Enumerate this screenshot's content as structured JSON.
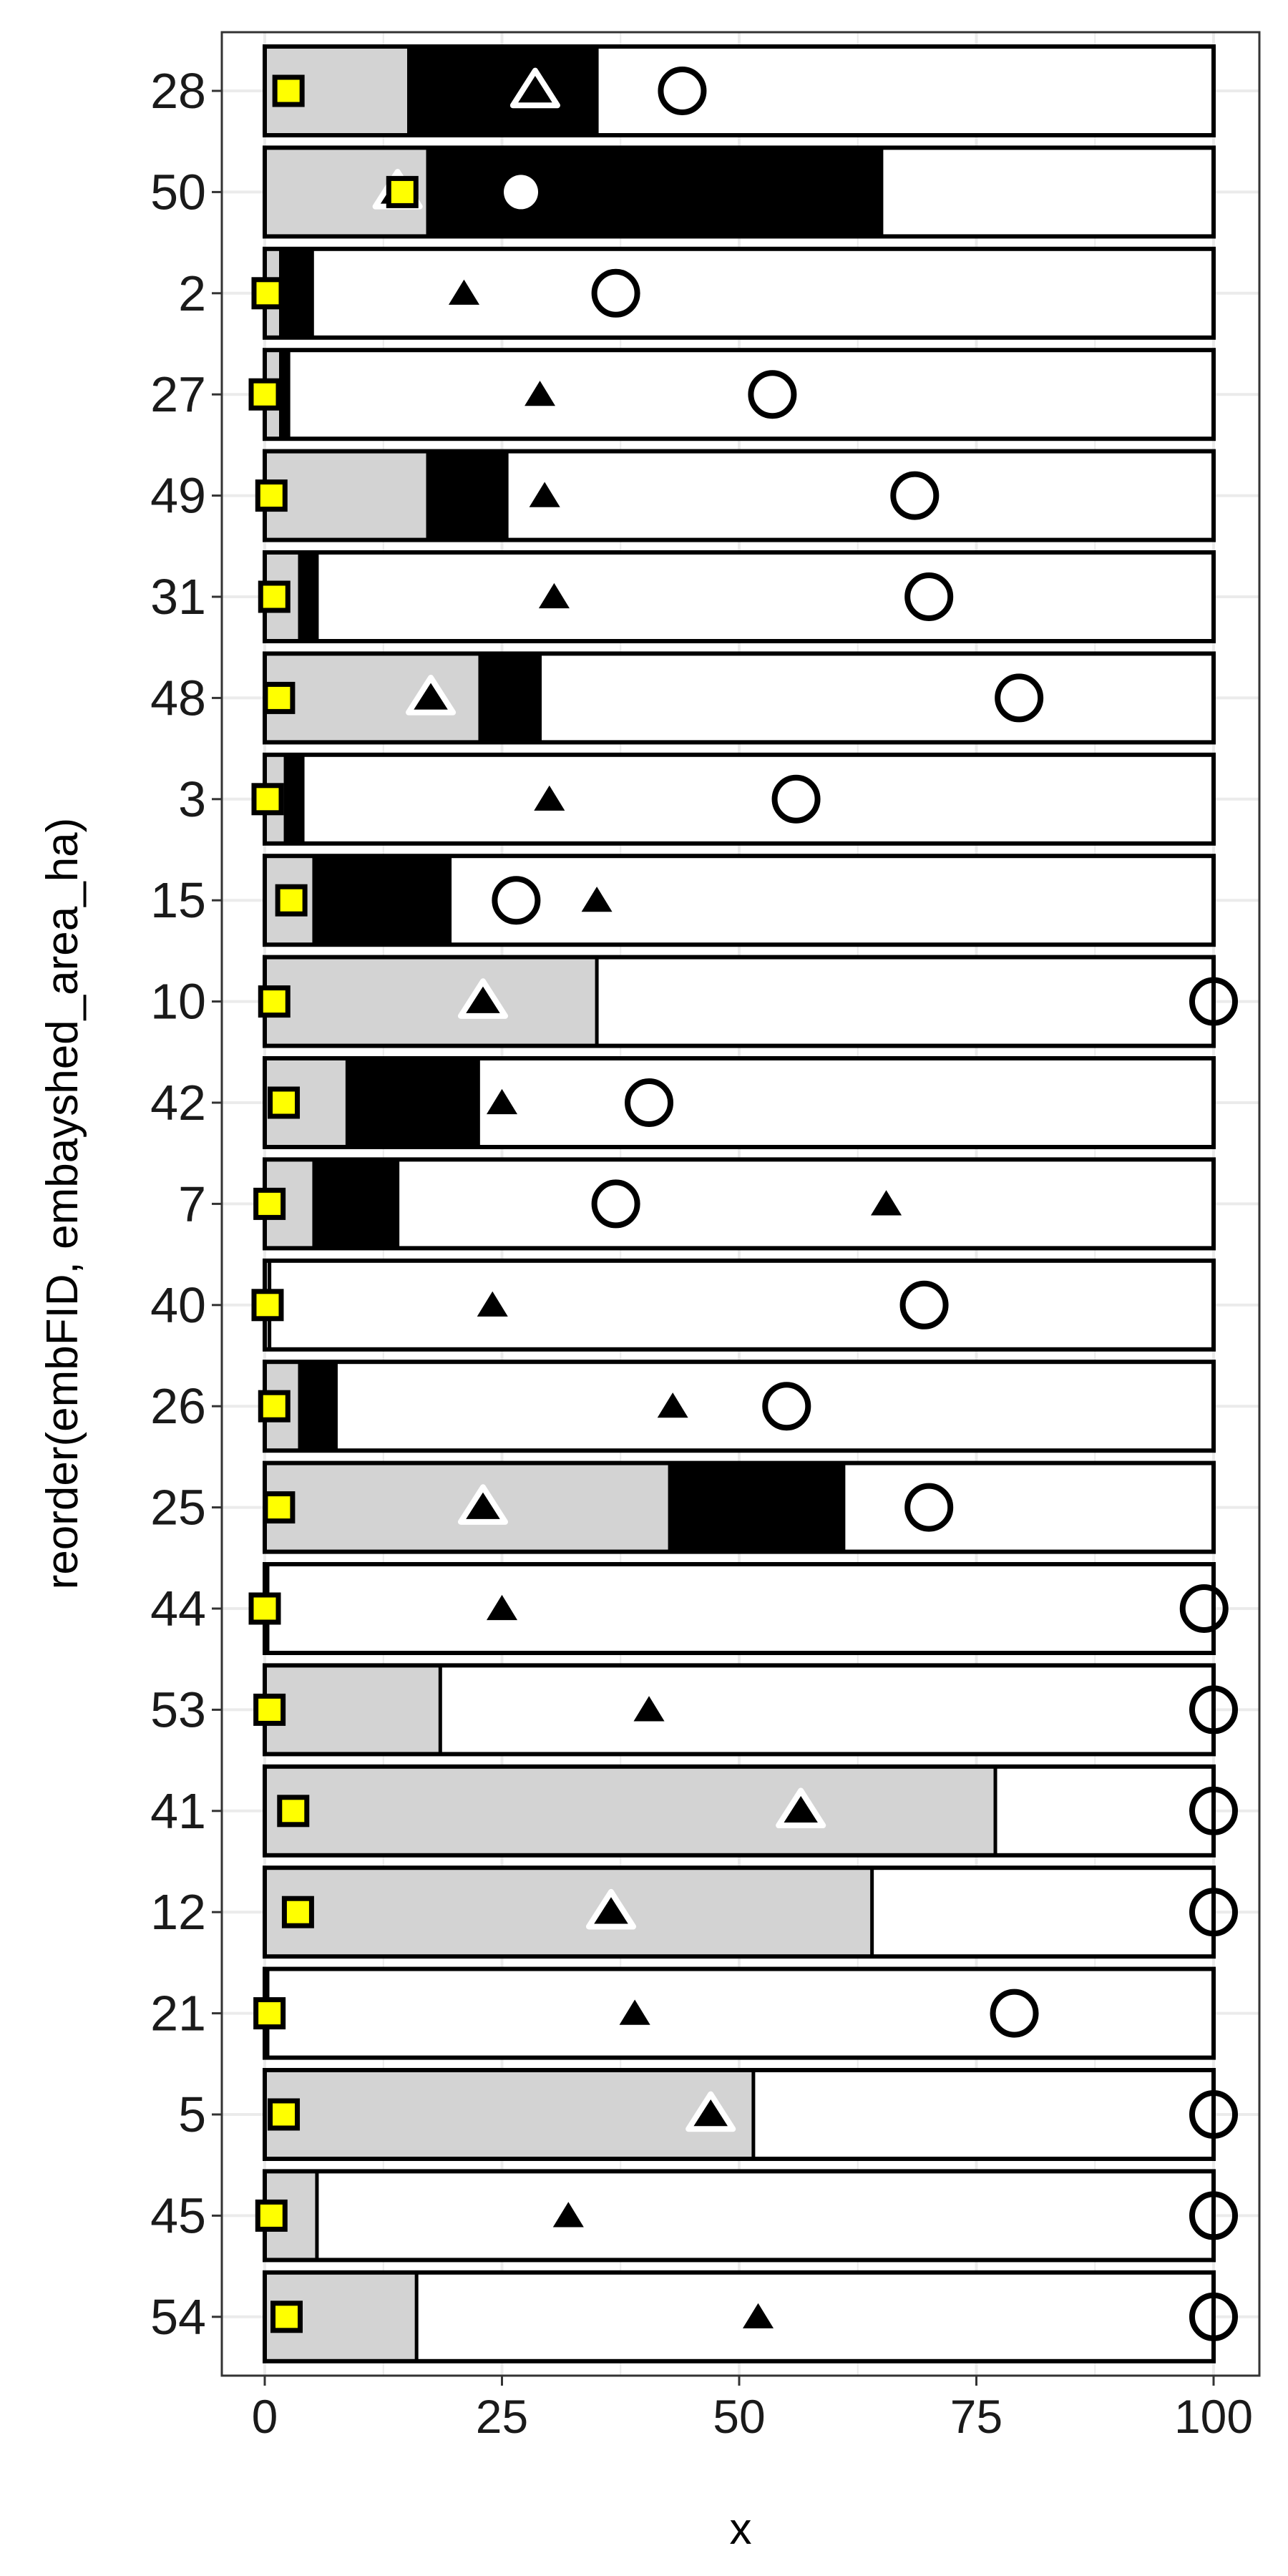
{
  "chart_data": {
    "type": "bar",
    "xlabel": "x",
    "ylabel": "reorder(embFID, embayshed_area_ha)",
    "xlim": [
      -5,
      105
    ],
    "x_ticks": [
      0,
      25,
      50,
      75,
      100
    ],
    "x_tick_labels": [
      "0",
      "25",
      "50",
      "75",
      "100"
    ],
    "grid": true,
    "legend": "none",
    "colors": {
      "grey_segment": "#d3d3d3",
      "black_segment": "#000000",
      "white_segment": "#ffffff",
      "square_marker": "#ffff00",
      "gridline": "#ebebeb"
    },
    "categories": [
      "28",
      "50",
      "2",
      "27",
      "49",
      "31",
      "48",
      "3",
      "15",
      "10",
      "42",
      "7",
      "40",
      "26",
      "25",
      "44",
      "53",
      "41",
      "12",
      "21",
      "5",
      "45",
      "54"
    ],
    "bars": [
      {
        "grey": 15,
        "black": 35,
        "square": 2.5,
        "triangle": 28.5,
        "triangle_style": "open",
        "circle": 44,
        "circle_style": "open"
      },
      {
        "grey": 17,
        "black": 65,
        "square": 14.5,
        "triangle": 14,
        "triangle_style": "open",
        "circle": 27,
        "circle_style": "white-filled"
      },
      {
        "grey": 1.5,
        "black": 5,
        "square": 0.3,
        "triangle": 21,
        "triangle_style": "filled",
        "circle": 37,
        "circle_style": "open"
      },
      {
        "grey": 1.5,
        "black": 2.5,
        "square": 0,
        "triangle": 29,
        "triangle_style": "filled",
        "circle": 53.5,
        "circle_style": "open"
      },
      {
        "grey": 17,
        "black": 25.5,
        "square": 0.7,
        "triangle": 29.5,
        "triangle_style": "filled",
        "circle": 68.5,
        "circle_style": "open"
      },
      {
        "grey": 3.5,
        "black": 5.5,
        "square": 1,
        "triangle": 30.5,
        "triangle_style": "filled",
        "circle": 70,
        "circle_style": "open"
      },
      {
        "grey": 22.5,
        "black": 29,
        "square": 1.5,
        "triangle": 17.5,
        "triangle_style": "open",
        "circle": 79.5,
        "circle_style": "open"
      },
      {
        "grey": 2,
        "black": 4,
        "square": 0.3,
        "triangle": 30,
        "triangle_style": "filled",
        "circle": 56,
        "circle_style": "open"
      },
      {
        "grey": 5,
        "black": 19.5,
        "square": 2.8,
        "triangle": 35,
        "triangle_style": "filled",
        "circle": 26.5,
        "circle_style": "open"
      },
      {
        "grey": 35,
        "black": 35,
        "square": 1,
        "triangle": 23,
        "triangle_style": "open",
        "circle": 100,
        "circle_style": "open"
      },
      {
        "grey": 8.5,
        "black": 22.5,
        "square": 2,
        "triangle": 25,
        "triangle_style": "filled",
        "circle": 40.5,
        "circle_style": "open"
      },
      {
        "grey": 5,
        "black": 14,
        "square": 0.5,
        "triangle": 65.5,
        "triangle_style": "filled",
        "circle": 37,
        "circle_style": "open"
      },
      {
        "grey": 0.5,
        "black": 0.5,
        "square": 0.3,
        "triangle": 24,
        "triangle_style": "filled",
        "circle": 69.5,
        "circle_style": "open"
      },
      {
        "grey": 3.5,
        "black": 7.5,
        "square": 1,
        "triangle": 43,
        "triangle_style": "filled",
        "circle": 55,
        "circle_style": "open"
      },
      {
        "grey": 42.5,
        "black": 61,
        "square": 1.5,
        "triangle": 23,
        "triangle_style": "open",
        "circle": 70,
        "circle_style": "open"
      },
      {
        "grey": 0.3,
        "black": 0.3,
        "square": 0,
        "triangle": 25,
        "triangle_style": "filled",
        "circle": 99,
        "circle_style": "open"
      },
      {
        "grey": 18.5,
        "black": 18.5,
        "square": 0.5,
        "triangle": 40.5,
        "triangle_style": "filled",
        "circle": 100,
        "circle_style": "open"
      },
      {
        "grey": 77,
        "black": 77,
        "square": 3,
        "triangle": 56.5,
        "triangle_style": "open",
        "circle": 100,
        "circle_style": "open"
      },
      {
        "grey": 64,
        "black": 64,
        "square": 3.5,
        "triangle": 36.5,
        "triangle_style": "open",
        "circle": 100,
        "circle_style": "open"
      },
      {
        "grey": 0.3,
        "black": 0.3,
        "square": 0.5,
        "triangle": 39,
        "triangle_style": "filled",
        "circle": 79,
        "circle_style": "open"
      },
      {
        "grey": 51.5,
        "black": 51.5,
        "square": 2,
        "triangle": 47,
        "triangle_style": "open",
        "circle": 100,
        "circle_style": "open"
      },
      {
        "grey": 5.5,
        "black": 5.5,
        "square": 0.7,
        "triangle": 32,
        "triangle_style": "filled",
        "circle": 100,
        "circle_style": "open"
      },
      {
        "grey": 16,
        "black": 16,
        "square": 2.3,
        "triangle": 52,
        "triangle_style": "filled",
        "circle": 100,
        "circle_style": "open"
      }
    ]
  }
}
